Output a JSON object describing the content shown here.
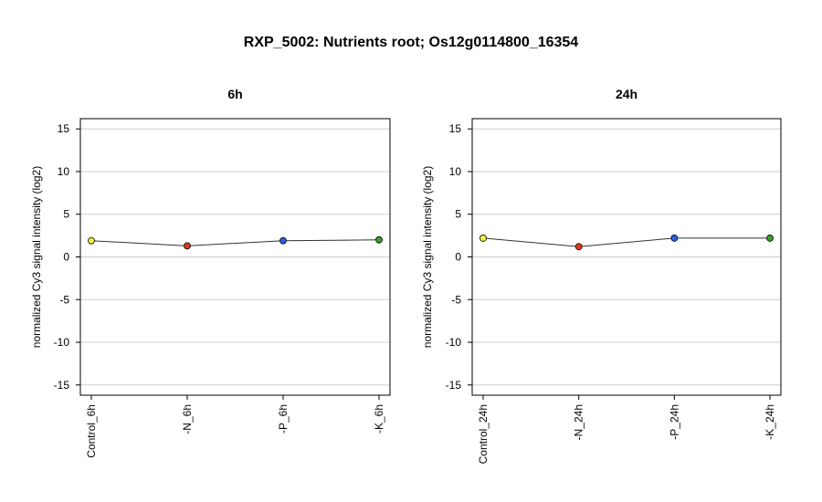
{
  "title": "RXP_5002: Nutrients root; Os12g0114800_16354",
  "chart_data": [
    {
      "type": "line",
      "title": "6h",
      "xlabel": "",
      "ylabel": "normalized Cy3 signal intensity (log2)",
      "categories": [
        "Control_6h",
        "-N_6h",
        "-P_6h",
        "-K_6h"
      ],
      "values": [
        1.9,
        1.3,
        1.9,
        2.0
      ],
      "point_colors": [
        "#f5f542",
        "#e03a1e",
        "#2f5fe0",
        "#3aa02a"
      ],
      "ylim": [
        -16.2,
        16.2
      ],
      "yticks": [
        -15,
        -10,
        -5,
        0,
        5,
        10,
        15
      ],
      "grid": true
    },
    {
      "type": "line",
      "title": "24h",
      "xlabel": "",
      "ylabel": "normalized Cy3 signal intensity (log2)",
      "categories": [
        "Control_24h",
        "-N_24h",
        "-P_24h",
        "-K_24h"
      ],
      "values": [
        2.2,
        1.2,
        2.2,
        2.2
      ],
      "point_colors": [
        "#f5f542",
        "#e03a1e",
        "#2f5fe0",
        "#3aa02a"
      ],
      "ylim": [
        -16.2,
        16.2
      ],
      "yticks": [
        -15,
        -10,
        -5,
        0,
        5,
        10,
        15
      ],
      "grid": true
    }
  ]
}
